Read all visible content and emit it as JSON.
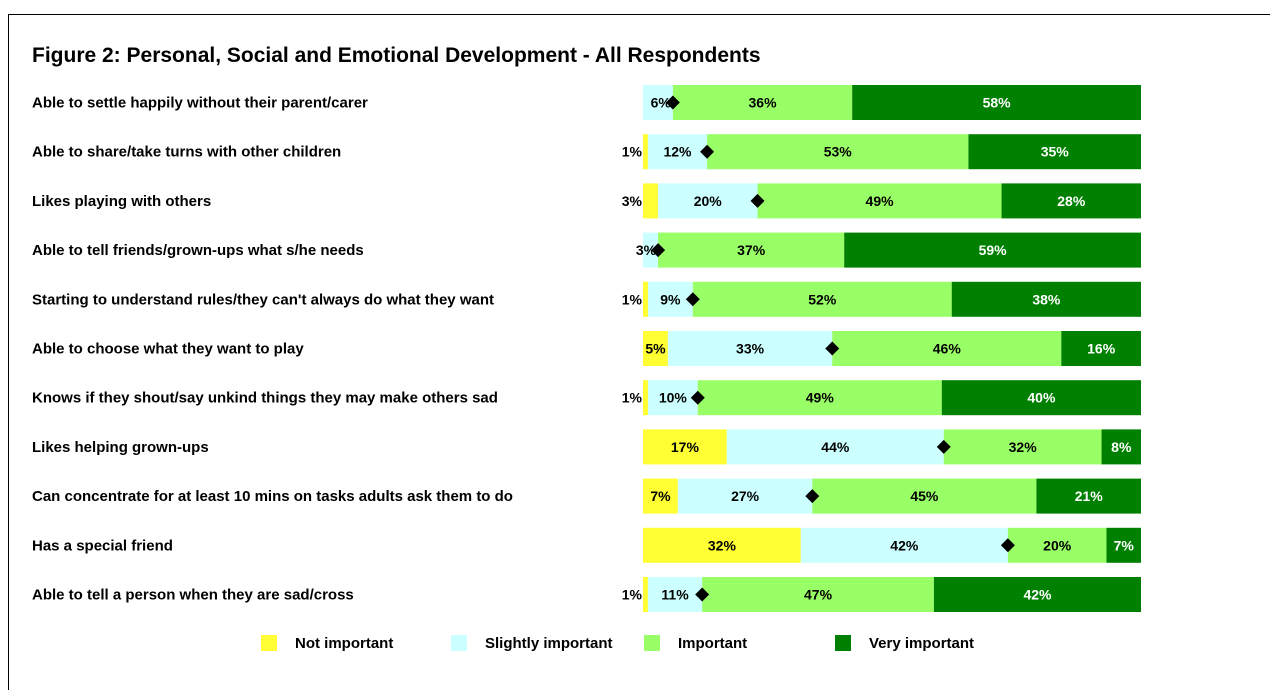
{
  "chart_data": {
    "type": "bar",
    "orientation": "horizontal",
    "stacked": true,
    "title": "Figure 2: Personal, Social and Emotional Development - All Respondents",
    "categories": [
      "Able to settle happily without their parent/carer",
      "Able to share/take turns with other children",
      "Likes playing with others",
      "Able to tell friends/grown-ups what s/he needs",
      "Starting to understand rules/they can't always do what they want",
      "Able to choose what they want to play",
      "Knows if they shout/say unkind things they may make others sad",
      "Likes helping grown-ups",
      "Can concentrate for at least 10 mins on tasks adults ask them to do",
      "Has a special friend",
      "Able to tell a person when they are sad/cross"
    ],
    "series": [
      {
        "name": "Not important",
        "color": "#ffff33",
        "values": [
          0,
          1,
          3,
          0,
          1,
          5,
          1,
          17,
          7,
          32,
          1
        ]
      },
      {
        "name": "Slightly important",
        "color": "#ccffff",
        "values": [
          6,
          12,
          20,
          3,
          9,
          33,
          10,
          44,
          27,
          42,
          11
        ]
      },
      {
        "name": "Important",
        "color": "#99ff66",
        "values": [
          36,
          53,
          49,
          37,
          52,
          46,
          49,
          32,
          45,
          20,
          47
        ]
      },
      {
        "name": "Very important",
        "color": "#008000",
        "values": [
          58,
          35,
          28,
          59,
          38,
          16,
          40,
          8,
          21,
          7,
          42
        ]
      }
    ],
    "bar_labels": [
      [
        "",
        "6%",
        "36%",
        "58%"
      ],
      [
        "1%",
        "12%",
        "53%",
        "35%"
      ],
      [
        "3%",
        "20%",
        "49%",
        "28%"
      ],
      [
        "",
        "3%",
        "37%",
        "59%"
      ],
      [
        "1%",
        "9%",
        "52%",
        "38%"
      ],
      [
        "5%",
        "33%",
        "46%",
        "16%"
      ],
      [
        "1%",
        "10%",
        "49%",
        "40%"
      ],
      [
        "17%",
        "44%",
        "32%",
        "8%"
      ],
      [
        "7%",
        "27%",
        "45%",
        "21%"
      ],
      [
        "32%",
        "42%",
        "20%",
        "7%"
      ],
      [
        "1%",
        "11%",
        "47%",
        "42%"
      ]
    ],
    "label_colors": [
      "#000000",
      "#000000",
      "#000000",
      "#ffffff"
    ],
    "marker": "diamond",
    "xlim": [
      0,
      100
    ],
    "grid": false,
    "legend_position": "bottom"
  }
}
